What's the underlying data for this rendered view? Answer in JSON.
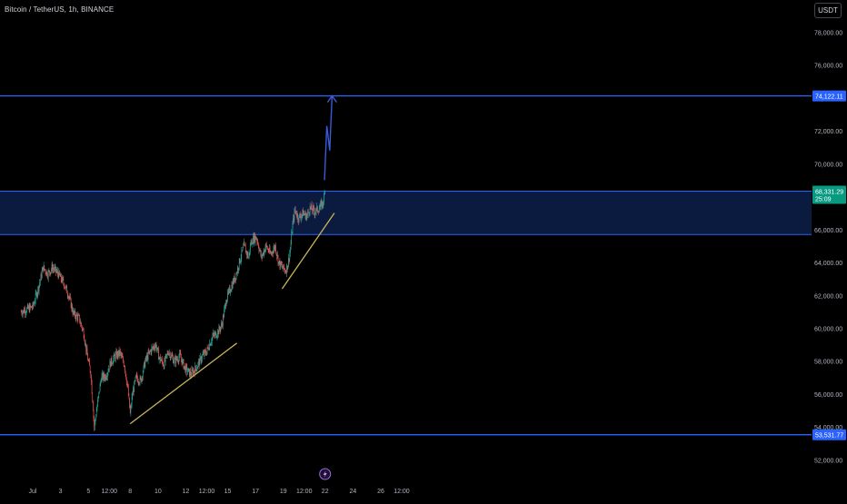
{
  "header": {
    "symbol_title": "Bitcoin / TetherUS, 1h, BINANCE",
    "currency_button": "USDT"
  },
  "colors": {
    "background": "#000000",
    "up_candle": "#26a69a",
    "down_candle": "#ef5350",
    "level_line": "#2962ff",
    "zone_fill": "#0d1e4a",
    "trendline": "#c9b458",
    "projection": "#3a5bd9",
    "price_tag": "#089981",
    "axis_text": "#b2b5be"
  },
  "chart_data": {
    "type": "candlestick",
    "y_axis": {
      "ticks": [
        52000,
        54000,
        56000,
        58000,
        60000,
        62000,
        64000,
        66000,
        68000,
        70000,
        72000,
        74000,
        76000,
        78000
      ],
      "tick_labels": [
        "52,000.00",
        "54,000.00",
        "56,000.00",
        "58,000.00",
        "60,000.00",
        "62,000.00",
        "64,000.00",
        "66,000.00",
        "68,000.00",
        "70,000.00",
        "72,000.00",
        "74,000.00",
        "76,000.00",
        "78,000.00"
      ],
      "range": [
        51000,
        79500
      ],
      "side": "right"
    },
    "x_axis": {
      "tick_labels": [
        "Jul",
        "3",
        "5",
        "12:00",
        "8",
        "10",
        "12",
        "12:00",
        "15",
        "17",
        "19",
        "12:00",
        "22",
        "24",
        "26",
        "12:00"
      ],
      "tick_hours": [
        0,
        48,
        96,
        132,
        168,
        216,
        264,
        300,
        336,
        384,
        432,
        468,
        504,
        552,
        600,
        636
      ]
    },
    "price_path": [
      [
        -20,
        61000
      ],
      [
        0,
        61300
      ],
      [
        10,
        62500
      ],
      [
        18,
        63700
      ],
      [
        26,
        63300
      ],
      [
        34,
        63700
      ],
      [
        44,
        63300
      ],
      [
        54,
        62700
      ],
      [
        62,
        62000
      ],
      [
        70,
        60900
      ],
      [
        80,
        60600
      ],
      [
        88,
        59700
      ],
      [
        94,
        58300
      ],
      [
        100,
        57300
      ],
      [
        104,
        55200
      ],
      [
        106,
        54000
      ],
      [
        112,
        55500
      ],
      [
        118,
        57000
      ],
      [
        126,
        57100
      ],
      [
        134,
        57900
      ],
      [
        142,
        58300
      ],
      [
        150,
        58500
      ],
      [
        158,
        57800
      ],
      [
        164,
        56300
      ],
      [
        168,
        54800
      ],
      [
        172,
        56000
      ],
      [
        178,
        57000
      ],
      [
        186,
        56800
      ],
      [
        194,
        58000
      ],
      [
        204,
        58700
      ],
      [
        212,
        59000
      ],
      [
        218,
        58200
      ],
      [
        226,
        57800
      ],
      [
        234,
        58600
      ],
      [
        244,
        58000
      ],
      [
        254,
        58300
      ],
      [
        262,
        57600
      ],
      [
        272,
        57200
      ],
      [
        282,
        57600
      ],
      [
        292,
        58300
      ],
      [
        300,
        58600
      ],
      [
        310,
        59500
      ],
      [
        318,
        59700
      ],
      [
        326,
        60200
      ],
      [
        334,
        61800
      ],
      [
        342,
        62500
      ],
      [
        350,
        63200
      ],
      [
        356,
        64000
      ],
      [
        364,
        65000
      ],
      [
        372,
        64300
      ],
      [
        376,
        65200
      ],
      [
        382,
        65500
      ],
      [
        386,
        65500
      ],
      [
        394,
        64300
      ],
      [
        402,
        65000
      ],
      [
        410,
        64500
      ],
      [
        418,
        65000
      ],
      [
        424,
        64000
      ],
      [
        430,
        63700
      ],
      [
        436,
        63500
      ],
      [
        440,
        63900
      ],
      [
        444,
        64800
      ],
      [
        448,
        66300
      ],
      [
        452,
        67200
      ],
      [
        458,
        66700
      ],
      [
        466,
        67000
      ],
      [
        472,
        66800
      ],
      [
        478,
        67300
      ],
      [
        486,
        67100
      ],
      [
        494,
        67300
      ],
      [
        500,
        67600
      ],
      [
        504,
        68331
      ]
    ],
    "current_price": 68331.29,
    "current_price_label": "68,331.29",
    "countdown_label": "25:09",
    "levels": [
      {
        "price": 74122.11,
        "label": "74,122.11"
      },
      {
        "price": 53531.77,
        "label": "53,531.77"
      }
    ],
    "zone": {
      "top": 68331.29,
      "bottom": 65700
    },
    "trendlines": [
      {
        "from": [
          168,
          54200
        ],
        "to": [
          352,
          59100
        ]
      },
      {
        "from": [
          430,
          62400
        ],
        "to": [
          520,
          67000
        ]
      }
    ],
    "projection_path": [
      [
        503,
        69000
      ],
      [
        507,
        72300
      ],
      [
        512,
        70800
      ],
      [
        516,
        74122.11
      ]
    ],
    "event_marker_hour": 504
  }
}
